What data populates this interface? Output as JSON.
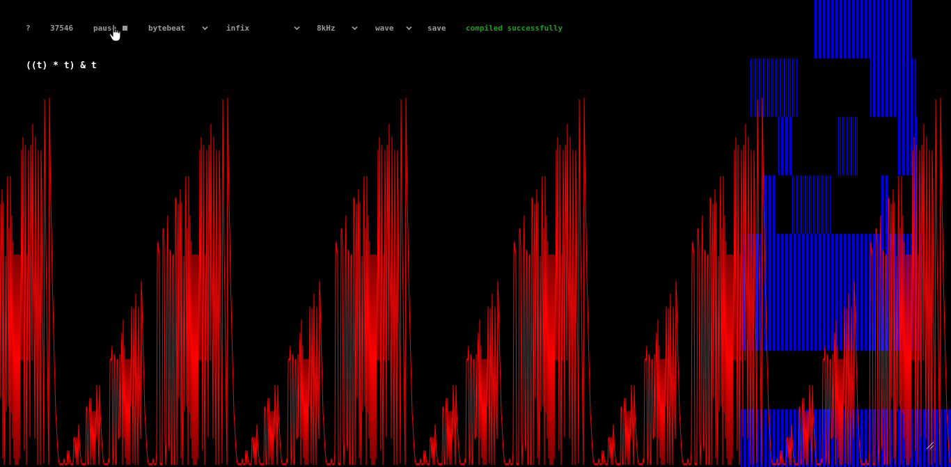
{
  "toolbar": {
    "help_label": "?",
    "time_value": "37546",
    "pause_label": "pause",
    "pause_icon": "stop-square",
    "mode_select": "bytebeat",
    "notation_select": "infix",
    "rate_select": "8kHz",
    "view_select": "wave",
    "save_label": "save",
    "status_text": "compiled successfully"
  },
  "editor": {
    "formula": "((t) * t) & t"
  },
  "colors": {
    "background": "#000000",
    "waveform": "#ff0000",
    "overlay": "#0000ee",
    "status": "#1e9e1e",
    "toolbar_text": "#9a9a9a"
  },
  "icons": {
    "cursor": "hand-pointer-icon",
    "dropdown": "chevron-down-icon",
    "resize": "resize-grip-icon"
  }
}
